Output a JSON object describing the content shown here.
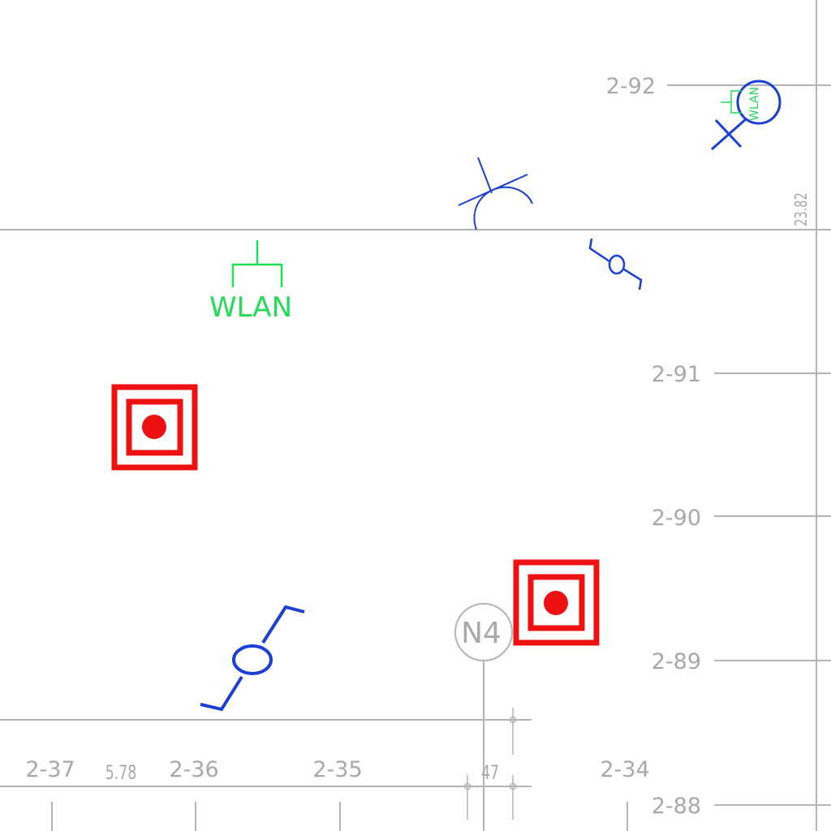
{
  "grid": {
    "row_labels": [
      "2-92",
      "2-91",
      "2-90",
      "2-89",
      "2-88"
    ],
    "column_labels": [
      "2-37",
      "2-36",
      "2-35",
      "2-34"
    ],
    "dimensions": [
      "5.78",
      "47",
      "23.82"
    ],
    "marker_label": "N4"
  },
  "symbols": {
    "wlan_label": "WLAN",
    "wlan_small_label": "WLAN"
  },
  "colors": {
    "grid": "#b4b4b4",
    "symbol_blue": "#1a3fd6",
    "symbol_green": "#22dd55",
    "symbol_red": "#ee1111"
  }
}
